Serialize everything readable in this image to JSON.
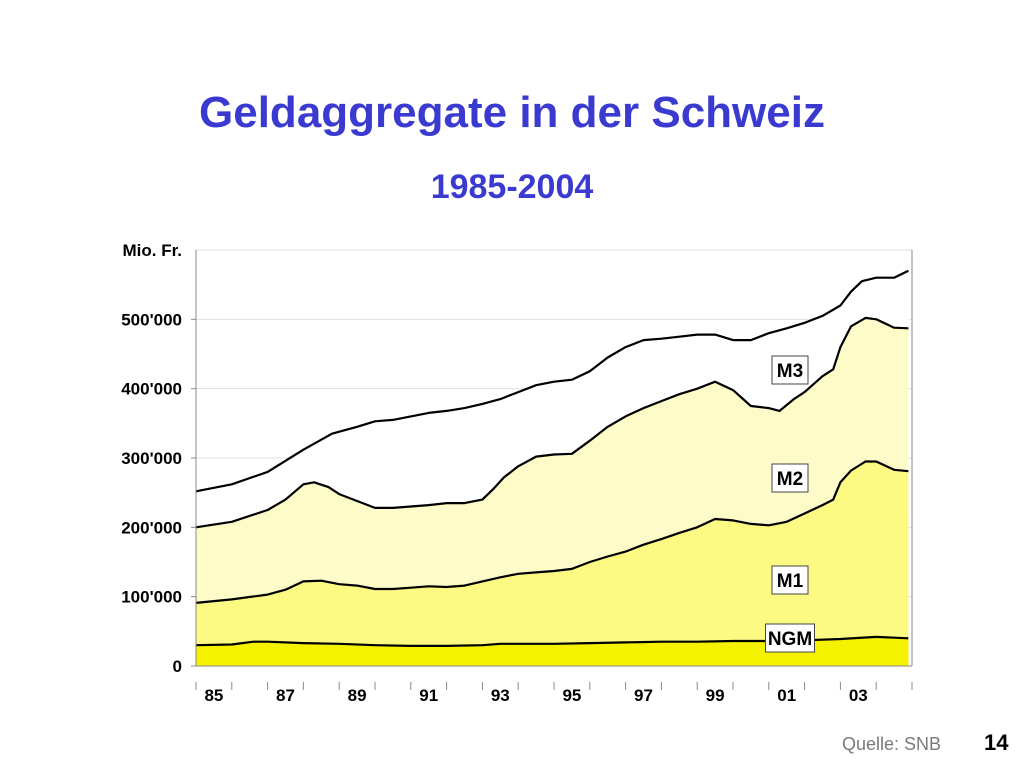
{
  "slide": {
    "title": "Geldaggregate in der Schweiz",
    "subtitle": "1985-2004",
    "source": "Quelle: SNB",
    "page_number": "14"
  },
  "chart_data": {
    "type": "area",
    "ylabel": "Mio. Fr.",
    "ylim": [
      0,
      600000
    ],
    "yticks": [
      {
        "value": 0,
        "label": "0"
      },
      {
        "value": 100000,
        "label": "100'000"
      },
      {
        "value": 200000,
        "label": "200'000"
      },
      {
        "value": 300000,
        "label": "300'000"
      },
      {
        "value": 400000,
        "label": "400'000"
      },
      {
        "value": 500000,
        "label": "500'000"
      }
    ],
    "xlim": [
      1985,
      2005
    ],
    "xticks": [
      {
        "value": 1985.5,
        "label": "85"
      },
      {
        "value": 1987.5,
        "label": "87"
      },
      {
        "value": 1989.5,
        "label": "89"
      },
      {
        "value": 1991.5,
        "label": "91"
      },
      {
        "value": 1993.5,
        "label": "93"
      },
      {
        "value": 1995.5,
        "label": "95"
      },
      {
        "value": 1997.5,
        "label": "97"
      },
      {
        "value": 1999.5,
        "label": "99"
      },
      {
        "value": 2001.5,
        "label": "01"
      },
      {
        "value": 2003.5,
        "label": "03"
      }
    ],
    "grid": true,
    "series": [
      {
        "name": "M3",
        "color": "#ffffff",
        "line": "#000000",
        "points": [
          [
            1985.0,
            252000
          ],
          [
            1986.0,
            262000
          ],
          [
            1987.0,
            280000
          ],
          [
            1988.0,
            312000
          ],
          [
            1988.8,
            335000
          ],
          [
            1989.5,
            345000
          ],
          [
            1990.0,
            353000
          ],
          [
            1990.5,
            355000
          ],
          [
            1991.0,
            360000
          ],
          [
            1991.5,
            365000
          ],
          [
            1992.0,
            368000
          ],
          [
            1992.5,
            372000
          ],
          [
            1993.0,
            378000
          ],
          [
            1993.5,
            385000
          ],
          [
            1994.0,
            395000
          ],
          [
            1994.5,
            405000
          ],
          [
            1995.0,
            410000
          ],
          [
            1995.5,
            413000
          ],
          [
            1996.0,
            425000
          ],
          [
            1996.5,
            445000
          ],
          [
            1997.0,
            460000
          ],
          [
            1997.5,
            470000
          ],
          [
            1998.0,
            472000
          ],
          [
            1998.5,
            475000
          ],
          [
            1999.0,
            478000
          ],
          [
            1999.5,
            478000
          ],
          [
            2000.0,
            470000
          ],
          [
            2000.5,
            470000
          ],
          [
            2001.0,
            480000
          ],
          [
            2001.5,
            487000
          ],
          [
            2002.0,
            495000
          ],
          [
            2002.5,
            505000
          ],
          [
            2003.0,
            520000
          ],
          [
            2003.3,
            540000
          ],
          [
            2003.6,
            555000
          ],
          [
            2004.0,
            560000
          ],
          [
            2004.5,
            560000
          ],
          [
            2004.9,
            570000
          ]
        ]
      },
      {
        "name": "M2",
        "color": "#fdfbc8",
        "line": "#000000",
        "points": [
          [
            1985.0,
            200000
          ],
          [
            1986.0,
            208000
          ],
          [
            1987.0,
            225000
          ],
          [
            1987.5,
            240000
          ],
          [
            1988.0,
            262000
          ],
          [
            1988.3,
            265000
          ],
          [
            1988.7,
            258000
          ],
          [
            1989.0,
            248000
          ],
          [
            1989.5,
            238000
          ],
          [
            1990.0,
            228000
          ],
          [
            1990.5,
            228000
          ],
          [
            1991.0,
            230000
          ],
          [
            1991.5,
            232000
          ],
          [
            1992.0,
            235000
          ],
          [
            1992.5,
            235000
          ],
          [
            1993.0,
            240000
          ],
          [
            1993.3,
            255000
          ],
          [
            1993.6,
            272000
          ],
          [
            1994.0,
            288000
          ],
          [
            1994.5,
            302000
          ],
          [
            1995.0,
            305000
          ],
          [
            1995.5,
            306000
          ],
          [
            1996.0,
            325000
          ],
          [
            1996.5,
            345000
          ],
          [
            1997.0,
            360000
          ],
          [
            1997.5,
            372000
          ],
          [
            1998.0,
            382000
          ],
          [
            1998.5,
            392000
          ],
          [
            1999.0,
            400000
          ],
          [
            1999.5,
            410000
          ],
          [
            2000.0,
            398000
          ],
          [
            2000.5,
            375000
          ],
          [
            2001.0,
            372000
          ],
          [
            2001.3,
            368000
          ],
          [
            2001.7,
            385000
          ],
          [
            2002.0,
            395000
          ],
          [
            2002.5,
            418000
          ],
          [
            2002.8,
            428000
          ],
          [
            2003.0,
            460000
          ],
          [
            2003.3,
            490000
          ],
          [
            2003.7,
            502000
          ],
          [
            2004.0,
            500000
          ],
          [
            2004.5,
            488000
          ],
          [
            2004.9,
            487000
          ]
        ]
      },
      {
        "name": "M1",
        "color": "#fcfa82",
        "line": "#000000",
        "points": [
          [
            1985.0,
            91000
          ],
          [
            1986.0,
            96000
          ],
          [
            1987.0,
            103000
          ],
          [
            1987.5,
            110000
          ],
          [
            1988.0,
            122000
          ],
          [
            1988.5,
            123000
          ],
          [
            1989.0,
            118000
          ],
          [
            1989.5,
            116000
          ],
          [
            1990.0,
            111000
          ],
          [
            1990.5,
            111000
          ],
          [
            1991.0,
            113000
          ],
          [
            1991.5,
            115000
          ],
          [
            1992.0,
            114000
          ],
          [
            1992.5,
            116000
          ],
          [
            1993.0,
            122000
          ],
          [
            1993.5,
            128000
          ],
          [
            1994.0,
            133000
          ],
          [
            1994.5,
            135000
          ],
          [
            1995.0,
            137000
          ],
          [
            1995.5,
            140000
          ],
          [
            1996.0,
            150000
          ],
          [
            1996.5,
            158000
          ],
          [
            1997.0,
            165000
          ],
          [
            1997.5,
            175000
          ],
          [
            1998.0,
            183000
          ],
          [
            1998.5,
            192000
          ],
          [
            1999.0,
            200000
          ],
          [
            1999.5,
            212000
          ],
          [
            2000.0,
            210000
          ],
          [
            2000.5,
            205000
          ],
          [
            2001.0,
            203000
          ],
          [
            2001.5,
            208000
          ],
          [
            2002.0,
            220000
          ],
          [
            2002.5,
            232000
          ],
          [
            2002.8,
            240000
          ],
          [
            2003.0,
            265000
          ],
          [
            2003.3,
            282000
          ],
          [
            2003.7,
            295000
          ],
          [
            2004.0,
            295000
          ],
          [
            2004.5,
            283000
          ],
          [
            2004.9,
            281000
          ]
        ]
      },
      {
        "name": "NGM",
        "color": "#f5f200",
        "line": "#000000",
        "points": [
          [
            1985.0,
            30000
          ],
          [
            1986.0,
            31000
          ],
          [
            1986.6,
            35000
          ],
          [
            1987.0,
            35000
          ],
          [
            1988.0,
            33000
          ],
          [
            1989.0,
            32000
          ],
          [
            1990.0,
            30000
          ],
          [
            1991.0,
            29000
          ],
          [
            1992.0,
            29000
          ],
          [
            1993.0,
            30000
          ],
          [
            1993.5,
            32000
          ],
          [
            1994.0,
            32000
          ],
          [
            1995.0,
            32000
          ],
          [
            1996.0,
            33000
          ],
          [
            1997.0,
            34000
          ],
          [
            1998.0,
            35000
          ],
          [
            1999.0,
            35000
          ],
          [
            2000.0,
            36000
          ],
          [
            2001.0,
            36000
          ],
          [
            2002.0,
            37000
          ],
          [
            2003.0,
            39000
          ],
          [
            2004.0,
            42000
          ],
          [
            2004.9,
            40000
          ]
        ]
      }
    ]
  }
}
